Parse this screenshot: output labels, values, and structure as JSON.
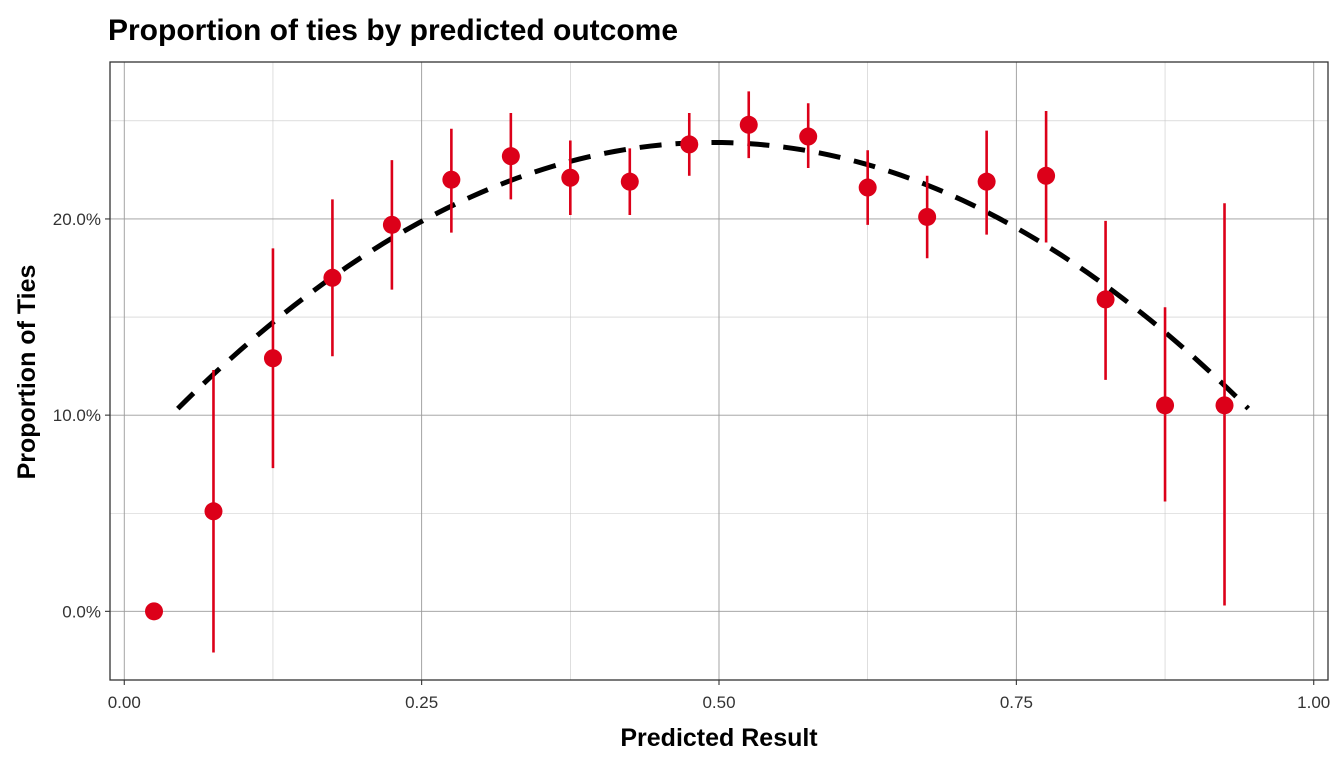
{
  "chart_data": {
    "type": "scatter",
    "title": "Proportion of ties by predicted outcome",
    "xlabel": "Predicted Result",
    "ylabel": "Proportion of Ties",
    "xlim": [
      -0.012,
      1.012
    ],
    "ylim": [
      -0.035,
      0.28
    ],
    "x_ticks": [
      0.0,
      0.25,
      0.5,
      0.75,
      1.0
    ],
    "x_tick_labels": [
      "0.00",
      "0.25",
      "0.50",
      "0.75",
      "1.00"
    ],
    "y_ticks": [
      0.0,
      0.1,
      0.2
    ],
    "y_tick_labels": [
      "0.0%",
      "10.0%",
      "20.0%"
    ],
    "y_minor_ticks": [
      0.05,
      0.15,
      0.25
    ],
    "grid": true,
    "legend": "none",
    "points": [
      {
        "x": 0.025,
        "y": 0.0,
        "lo": null,
        "hi": null
      },
      {
        "x": 0.075,
        "y": 0.051,
        "lo": -0.021,
        "hi": 0.123
      },
      {
        "x": 0.125,
        "y": 0.129,
        "lo": 0.073,
        "hi": 0.185
      },
      {
        "x": 0.175,
        "y": 0.17,
        "lo": 0.13,
        "hi": 0.21
      },
      {
        "x": 0.225,
        "y": 0.197,
        "lo": 0.164,
        "hi": 0.23
      },
      {
        "x": 0.275,
        "y": 0.22,
        "lo": 0.193,
        "hi": 0.246
      },
      {
        "x": 0.325,
        "y": 0.232,
        "lo": 0.21,
        "hi": 0.254
      },
      {
        "x": 0.375,
        "y": 0.221,
        "lo": 0.202,
        "hi": 0.24
      },
      {
        "x": 0.425,
        "y": 0.219,
        "lo": 0.202,
        "hi": 0.236
      },
      {
        "x": 0.475,
        "y": 0.238,
        "lo": 0.222,
        "hi": 0.254
      },
      {
        "x": 0.525,
        "y": 0.248,
        "lo": 0.231,
        "hi": 0.265
      },
      {
        "x": 0.575,
        "y": 0.242,
        "lo": 0.226,
        "hi": 0.259
      },
      {
        "x": 0.625,
        "y": 0.216,
        "lo": 0.197,
        "hi": 0.235
      },
      {
        "x": 0.675,
        "y": 0.201,
        "lo": 0.18,
        "hi": 0.222
      },
      {
        "x": 0.725,
        "y": 0.219,
        "lo": 0.192,
        "hi": 0.245
      },
      {
        "x": 0.775,
        "y": 0.222,
        "lo": 0.188,
        "hi": 0.255
      },
      {
        "x": 0.825,
        "y": 0.159,
        "lo": 0.118,
        "hi": 0.199
      },
      {
        "x": 0.875,
        "y": 0.105,
        "lo": 0.056,
        "hi": 0.155
      },
      {
        "x": 0.925,
        "y": 0.105,
        "lo": 0.003,
        "hi": 0.208
      }
    ],
    "fit_curve": {
      "style": "dashed",
      "x_range": [
        0.045,
        0.945
      ],
      "peak_x": 0.495,
      "peak_y": 0.239,
      "curvature": 0.67
    },
    "colors": {
      "points": "#dc0019",
      "fit": "#000000",
      "grid": "#c8c8c8",
      "panel_border": "#333333"
    }
  }
}
